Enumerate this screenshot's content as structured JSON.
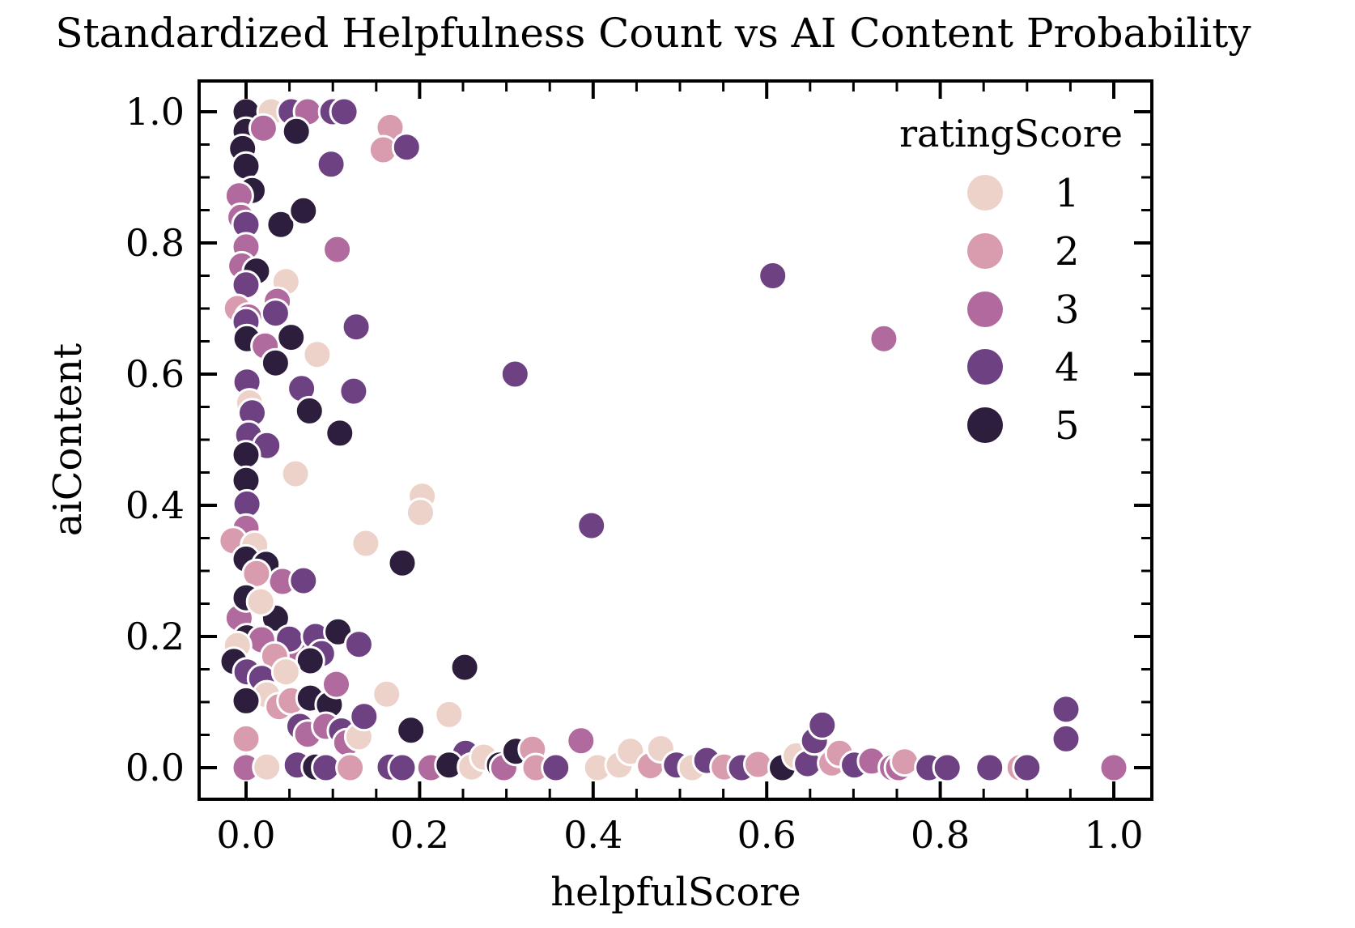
{
  "figure": {
    "title": "Standardized Helpfulness Count vs AI Content Probability"
  },
  "chart_data": {
    "type": "scatter",
    "title": "Standardized Helpfulness Count vs AI Content Probability",
    "xlabel": "helpfulScore",
    "ylabel": "aiContent",
    "xlim": [
      -0.054,
      1.044
    ],
    "ylim": [
      -0.048,
      1.047
    ],
    "x_ticks": [
      0.0,
      0.2,
      0.4,
      0.6,
      0.8,
      1.0
    ],
    "x_tick_labels": [
      "0.0",
      "0.2",
      "0.4",
      "0.6",
      "0.8",
      "1.0"
    ],
    "y_ticks": [
      0.0,
      0.2,
      0.4,
      0.6,
      0.8,
      1.0
    ],
    "y_tick_labels": [
      "0.0",
      "0.2",
      "0.4",
      "0.6",
      "0.8",
      "1.0"
    ],
    "minor_tick_step": 0.05,
    "grid": false,
    "tick_direction": "in",
    "legend": {
      "title": "ratingScore",
      "position": "upper right",
      "entries": [
        {
          "label": "1",
          "color": "#ecd2c9"
        },
        {
          "label": "2",
          "color": "#d89cae"
        },
        {
          "label": "3",
          "color": "#b06a9d"
        },
        {
          "label": "4",
          "color": "#6d4182"
        },
        {
          "label": "5",
          "color": "#2e1e3e"
        }
      ]
    },
    "palette": {
      "1": "#ecd2c9",
      "2": "#d89cae",
      "3": "#b06a9d",
      "4": "#6d4182",
      "5": "#2e1e3e"
    },
    "series_name": "ratingScore",
    "points": [
      [
        0.0,
        1.0,
        5
      ],
      [
        0.029,
        1.0,
        1
      ],
      [
        0.052,
        1.0,
        4
      ],
      [
        0.071,
        1.0,
        3
      ],
      [
        0.1,
        1.0,
        4
      ],
      [
        0.113,
        1.0,
        4
      ],
      [
        0.0,
        0.97,
        5
      ],
      [
        -0.004,
        0.944,
        5
      ],
      [
        0.0,
        0.917,
        5
      ],
      [
        0.058,
        0.97,
        5
      ],
      [
        0.02,
        0.975,
        3
      ],
      [
        0.166,
        0.976,
        2
      ],
      [
        0.158,
        0.942,
        2
      ],
      [
        0.185,
        0.946,
        4
      ],
      [
        0.098,
        0.92,
        4
      ],
      [
        0.007,
        0.88,
        5
      ],
      [
        -0.008,
        0.872,
        3
      ],
      [
        -0.006,
        0.839,
        3
      ],
      [
        0.0,
        0.828,
        4
      ],
      [
        0.04,
        0.828,
        5
      ],
      [
        0.066,
        0.849,
        5
      ],
      [
        0.0,
        0.794,
        3
      ],
      [
        -0.005,
        0.765,
        3
      ],
      [
        0.105,
        0.79,
        3
      ],
      [
        0.012,
        0.757,
        5
      ],
      [
        0.0,
        0.736,
        4
      ],
      [
        0.046,
        0.741,
        1
      ],
      [
        0.036,
        0.711,
        3
      ],
      [
        -0.01,
        0.7,
        2
      ],
      [
        0.003,
        0.687,
        3
      ],
      [
        0.034,
        0.693,
        4
      ],
      [
        0.0,
        0.68,
        4
      ],
      [
        0.001,
        0.654,
        5
      ],
      [
        0.052,
        0.656,
        5
      ],
      [
        0.022,
        0.643,
        3
      ],
      [
        0.034,
        0.617,
        5
      ],
      [
        0.082,
        0.63,
        1
      ],
      [
        0.127,
        0.672,
        4
      ],
      [
        0.001,
        0.588,
        4
      ],
      [
        0.004,
        0.556,
        1
      ],
      [
        0.007,
        0.541,
        4
      ],
      [
        0.064,
        0.578,
        4
      ],
      [
        0.073,
        0.544,
        5
      ],
      [
        0.124,
        0.574,
        4
      ],
      [
        0.108,
        0.51,
        5
      ],
      [
        0.003,
        0.507,
        4
      ],
      [
        0.024,
        0.491,
        4
      ],
      [
        0.0,
        0.477,
        5
      ],
      [
        0.057,
        0.448,
        1
      ],
      [
        0.0,
        0.438,
        5
      ],
      [
        0.001,
        0.402,
        4
      ],
      [
        0.0,
        0.365,
        3
      ],
      [
        -0.015,
        0.346,
        2
      ],
      [
        0.01,
        0.339,
        1
      ],
      [
        0.0,
        0.318,
        5
      ],
      [
        0.023,
        0.31,
        5
      ],
      [
        0.203,
        0.414,
        1
      ],
      [
        0.201,
        0.389,
        1
      ],
      [
        0.138,
        0.342,
        1
      ],
      [
        0.18,
        0.312,
        5
      ],
      [
        0.042,
        0.284,
        3
      ],
      [
        0.066,
        0.285,
        4
      ],
      [
        0.012,
        0.296,
        2
      ],
      [
        -0.008,
        0.228,
        3
      ],
      [
        0.034,
        0.228,
        5
      ],
      [
        0.0,
        0.259,
        5
      ],
      [
        0.017,
        0.253,
        1
      ],
      [
        0.31,
        0.6,
        4
      ],
      [
        0.398,
        0.369,
        4
      ],
      [
        0.607,
        0.75,
        4
      ],
      [
        0.735,
        0.654,
        3
      ],
      [
        0.001,
        0.198,
        5
      ],
      [
        0.018,
        0.195,
        3
      ],
      [
        -0.01,
        0.186,
        1
      ],
      [
        -0.014,
        0.162,
        5
      ],
      [
        0.057,
        0.173,
        3
      ],
      [
        0.05,
        0.196,
        4
      ],
      [
        0.08,
        0.2,
        4
      ],
      [
        0.106,
        0.207,
        5
      ],
      [
        0.087,
        0.174,
        4
      ],
      [
        0.13,
        0.188,
        4
      ],
      [
        0.074,
        0.163,
        5
      ],
      [
        0.033,
        0.17,
        2
      ],
      [
        0.252,
        0.153,
        5
      ],
      [
        0.001,
        0.146,
        4
      ],
      [
        0.018,
        0.136,
        4
      ],
      [
        0.046,
        0.146,
        1
      ],
      [
        0.024,
        0.111,
        1
      ],
      [
        0.0,
        0.102,
        5
      ],
      [
        0.0,
        0.044,
        2
      ],
      [
        0.038,
        0.093,
        2
      ],
      [
        0.052,
        0.102,
        2
      ],
      [
        0.074,
        0.106,
        5
      ],
      [
        0.096,
        0.096,
        5
      ],
      [
        0.104,
        0.127,
        3
      ],
      [
        0.062,
        0.063,
        4
      ],
      [
        0.071,
        0.051,
        3
      ],
      [
        0.092,
        0.063,
        3
      ],
      [
        0.11,
        0.056,
        4
      ],
      [
        0.116,
        0.038,
        3
      ],
      [
        0.13,
        0.047,
        1
      ],
      [
        0.136,
        0.078,
        4
      ],
      [
        0.162,
        0.112,
        1
      ],
      [
        0.234,
        0.081,
        1
      ],
      [
        0.19,
        0.057,
        5
      ],
      [
        0.253,
        0.022,
        4
      ],
      [
        0.0,
        0.0,
        3
      ],
      [
        0.024,
        0.001,
        1
      ],
      [
        0.059,
        0.004,
        4
      ],
      [
        0.08,
        0.001,
        5
      ],
      [
        0.092,
        0.0,
        4
      ],
      [
        0.12,
        0.0,
        2
      ],
      [
        0.166,
        0.001,
        4
      ],
      [
        0.18,
        0.0,
        4
      ],
      [
        0.213,
        0.0,
        3
      ],
      [
        0.234,
        0.004,
        5
      ],
      [
        0.26,
        0.001,
        1
      ],
      [
        0.274,
        0.016,
        1
      ],
      [
        0.292,
        0.004,
        5
      ],
      [
        0.297,
        0.0,
        3
      ],
      [
        0.311,
        0.025,
        5
      ],
      [
        0.33,
        0.028,
        2
      ],
      [
        0.334,
        0.0,
        2
      ],
      [
        0.357,
        0.0,
        4
      ],
      [
        0.386,
        0.041,
        3
      ],
      [
        0.405,
        0.0,
        1
      ],
      [
        0.43,
        0.004,
        1
      ],
      [
        0.443,
        0.025,
        1
      ],
      [
        0.466,
        0.003,
        2
      ],
      [
        0.478,
        0.029,
        1
      ],
      [
        0.496,
        0.004,
        4
      ],
      [
        0.514,
        0.0,
        1
      ],
      [
        0.531,
        0.011,
        4
      ],
      [
        0.551,
        0.001,
        2
      ],
      [
        0.571,
        0.0,
        4
      ],
      [
        0.59,
        0.005,
        2
      ],
      [
        0.618,
        0.0,
        5
      ],
      [
        0.634,
        0.018,
        1
      ],
      [
        0.647,
        0.006,
        4
      ],
      [
        0.655,
        0.041,
        4
      ],
      [
        0.664,
        0.065,
        4
      ],
      [
        0.675,
        0.007,
        2
      ],
      [
        0.684,
        0.022,
        2
      ],
      [
        0.701,
        0.004,
        4
      ],
      [
        0.721,
        0.01,
        3
      ],
      [
        0.745,
        0.0,
        3
      ],
      [
        0.752,
        0.0,
        3
      ],
      [
        0.759,
        0.009,
        2
      ],
      [
        0.787,
        0.0,
        4
      ],
      [
        0.808,
        0.0,
        4
      ],
      [
        0.857,
        0.0,
        4
      ],
      [
        0.892,
        0.0,
        2
      ],
      [
        0.9,
        0.0,
        4
      ],
      [
        1.0,
        0.0,
        3
      ],
      [
        0.945,
        0.089,
        4
      ],
      [
        0.945,
        0.044,
        4
      ]
    ]
  }
}
